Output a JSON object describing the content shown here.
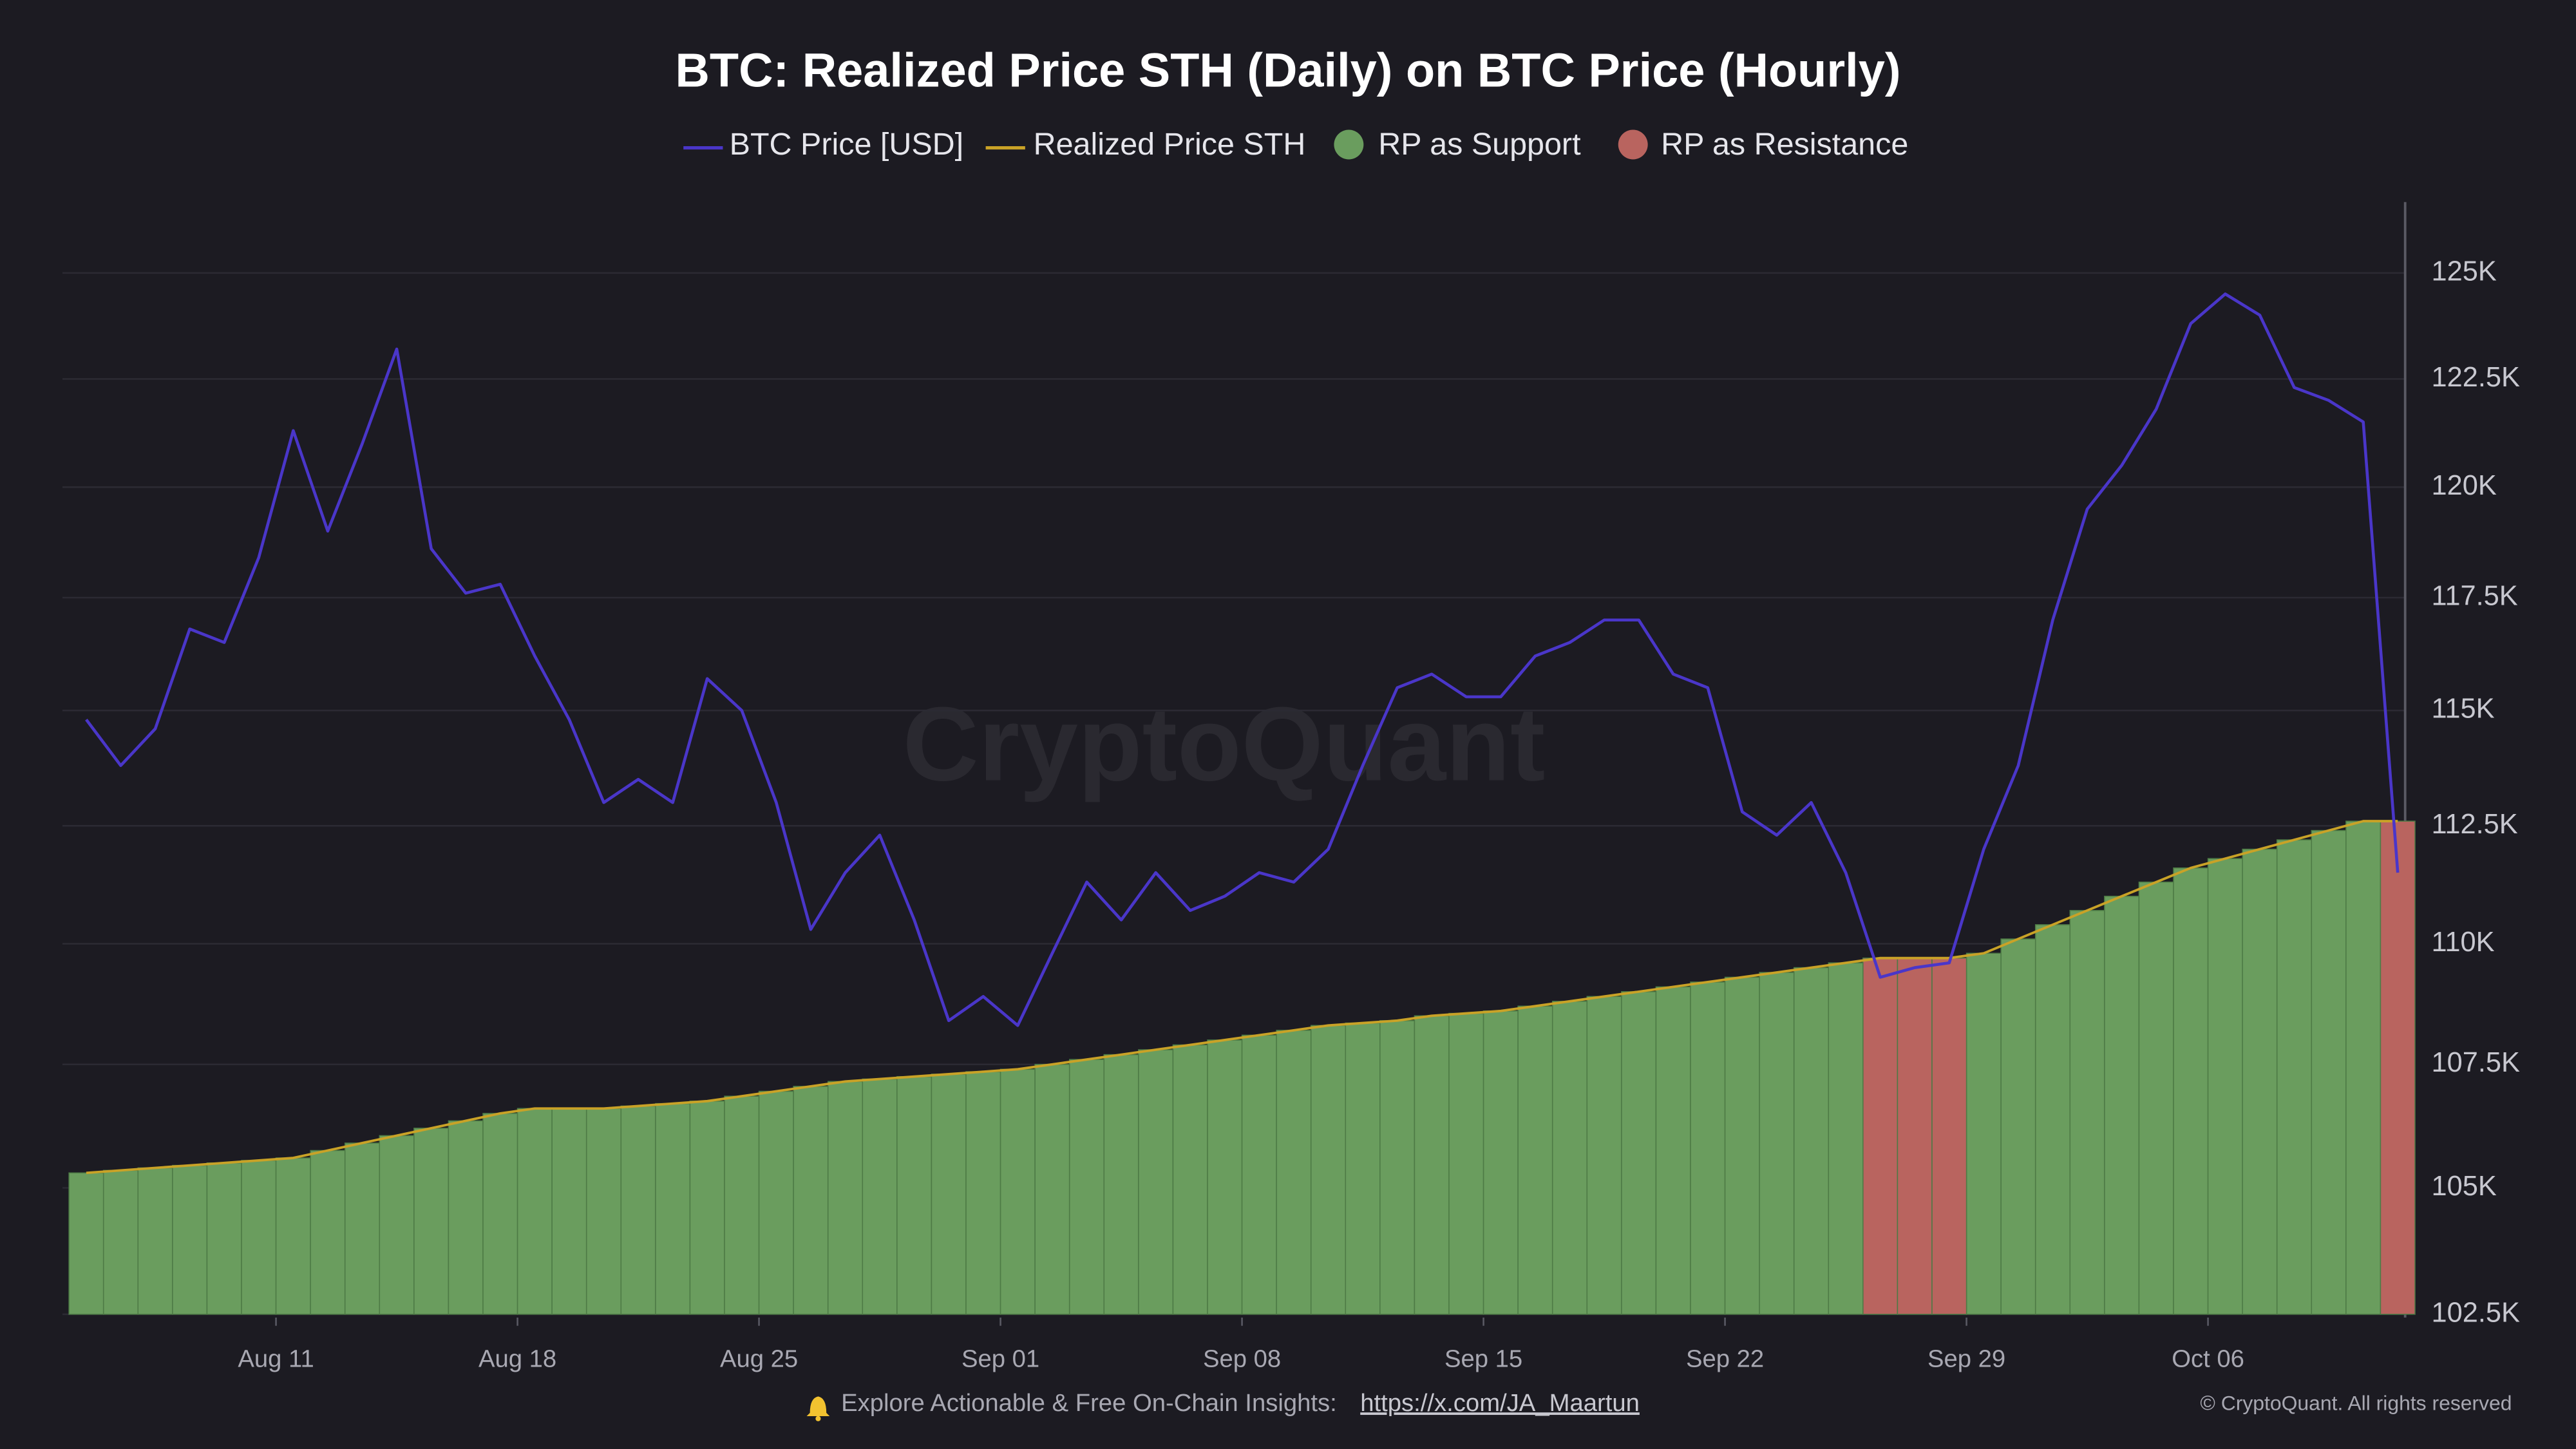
{
  "chart_data": {
    "type": "line",
    "title": "BTC: Realized Price STH (Daily) on BTC Price (Hourly)",
    "categories": [
      "Aug 05",
      "Aug 06",
      "Aug 07",
      "Aug 08",
      "Aug 09",
      "Aug 10",
      "Aug 11",
      "Aug 12",
      "Aug 13",
      "Aug 14",
      "Aug 15",
      "Aug 16",
      "Aug 17",
      "Aug 18",
      "Aug 19",
      "Aug 20",
      "Aug 21",
      "Aug 22",
      "Aug 23",
      "Aug 24",
      "Aug 25",
      "Aug 26",
      "Aug 27",
      "Aug 28",
      "Aug 29",
      "Aug 30",
      "Aug 31",
      "Sep 01",
      "Sep 02",
      "Sep 03",
      "Sep 04",
      "Sep 05",
      "Sep 06",
      "Sep 07",
      "Sep 08",
      "Sep 09",
      "Sep 10",
      "Sep 11",
      "Sep 12",
      "Sep 13",
      "Sep 14",
      "Sep 15",
      "Sep 16",
      "Sep 17",
      "Sep 18",
      "Sep 19",
      "Sep 20",
      "Sep 21",
      "Sep 22",
      "Sep 23",
      "Sep 24",
      "Sep 25",
      "Sep 26",
      "Sep 27",
      "Sep 28",
      "Sep 29",
      "Sep 30",
      "Oct 01",
      "Oct 02",
      "Oct 03",
      "Oct 04",
      "Oct 05",
      "Oct 06",
      "Oct 07",
      "Oct 08",
      "Oct 09",
      "Oct 10",
      "Oct 11"
    ],
    "series": [
      {
        "name": "BTC Price [USD]",
        "type": "line",
        "color": "#4a36c9",
        "values": [
          114800,
          113800,
          114600,
          116800,
          116500,
          118400,
          121300,
          119000,
          121000,
          123200,
          118600,
          117600,
          117800,
          116200,
          114800,
          113000,
          113500,
          113000,
          115700,
          115000,
          113000,
          110300,
          111500,
          112300,
          110500,
          108400,
          108900,
          108300,
          109800,
          111300,
          110500,
          111500,
          110700,
          111000,
          111500,
          111300,
          112000,
          113800,
          115500,
          115800,
          115300,
          115300,
          116200,
          116500,
          117000,
          117000,
          115800,
          115500,
          112800,
          112300,
          113000,
          111500,
          109300,
          109500,
          109600,
          112000,
          113800,
          117000,
          119500,
          120500,
          121800,
          123800,
          124500,
          124000,
          122300,
          122000,
          121500,
          111500
        ]
      },
      {
        "name": "Realized Price STH",
        "type": "line",
        "color": "#c9a227",
        "values": [
          105300,
          105350,
          105400,
          105450,
          105500,
          105550,
          105600,
          105750,
          105900,
          106050,
          106200,
          106350,
          106500,
          106600,
          106600,
          106600,
          106650,
          106700,
          106750,
          106850,
          106950,
          107050,
          107150,
          107200,
          107250,
          107300,
          107350,
          107400,
          107500,
          107600,
          107700,
          107800,
          107900,
          108000,
          108100,
          108200,
          108300,
          108350,
          108400,
          108500,
          108550,
          108600,
          108700,
          108800,
          108900,
          109000,
          109100,
          109200,
          109300,
          109400,
          109500,
          109600,
          109700,
          109700,
          109700,
          109800,
          110100,
          110400,
          110700,
          111000,
          111300,
          111600,
          111800,
          112000,
          112200,
          112400,
          112600,
          112600
        ]
      },
      {
        "name": "RP as Support",
        "type": "bar",
        "color": "#6a9d5e",
        "values": [
          105300,
          105350,
          105400,
          105450,
          105500,
          105550,
          105600,
          105750,
          105900,
          106050,
          106200,
          106350,
          106500,
          106600,
          106600,
          106600,
          106650,
          106700,
          106750,
          106850,
          106950,
          107050,
          107150,
          107200,
          107250,
          107300,
          107350,
          107400,
          107500,
          107600,
          107700,
          107800,
          107900,
          108000,
          108100,
          108200,
          108300,
          108350,
          108400,
          108500,
          108550,
          108600,
          108700,
          108800,
          108900,
          109000,
          109100,
          109200,
          109300,
          109400,
          109500,
          109600,
          null,
          null,
          null,
          109800,
          110100,
          110400,
          110700,
          111000,
          111300,
          111600,
          111800,
          112000,
          112200,
          112400,
          112600,
          null
        ]
      },
      {
        "name": "RP as Resistance",
        "type": "bar",
        "color": "#b9645f",
        "values": [
          null,
          null,
          null,
          null,
          null,
          null,
          null,
          null,
          null,
          null,
          null,
          null,
          null,
          null,
          null,
          null,
          null,
          null,
          null,
          null,
          null,
          null,
          null,
          null,
          null,
          null,
          null,
          null,
          null,
          null,
          null,
          null,
          null,
          null,
          null,
          null,
          null,
          null,
          null,
          null,
          null,
          null,
          null,
          null,
          null,
          null,
          null,
          null,
          null,
          null,
          null,
          null,
          109700,
          109700,
          109700,
          null,
          null,
          null,
          null,
          null,
          null,
          null,
          null,
          null,
          null,
          null,
          null,
          112600
        ]
      }
    ],
    "log_scale": true,
    "ylim": [
      102500,
      126700
    ],
    "yticks": [
      {
        "value": 102500,
        "label": "102.5K"
      },
      {
        "value": 105000,
        "label": "105K"
      },
      {
        "value": 107500,
        "label": "107.5K"
      },
      {
        "value": 110000,
        "label": "110K"
      },
      {
        "value": 112500,
        "label": "112.5K"
      },
      {
        "value": 115000,
        "label": "115K"
      },
      {
        "value": 117500,
        "label": "117.5K"
      },
      {
        "value": 120000,
        "label": "120K"
      },
      {
        "value": 122500,
        "label": "122.5K"
      },
      {
        "value": 125000,
        "label": "125K"
      }
    ],
    "xticks": [
      "Aug 11",
      "Aug 18",
      "Aug 25",
      "Sep 01",
      "Sep 08",
      "Sep 15",
      "Sep 22",
      "Sep 29",
      "Oct 06"
    ],
    "grid": true,
    "legend": "top",
    "watermark": "CryptoQuant",
    "footer": {
      "text": "Explore Actionable & Free On-Chain Insights:",
      "link": "https://x.com/JA_Maartun",
      "copyright": "© CryptoQuant. All rights reserved"
    }
  }
}
